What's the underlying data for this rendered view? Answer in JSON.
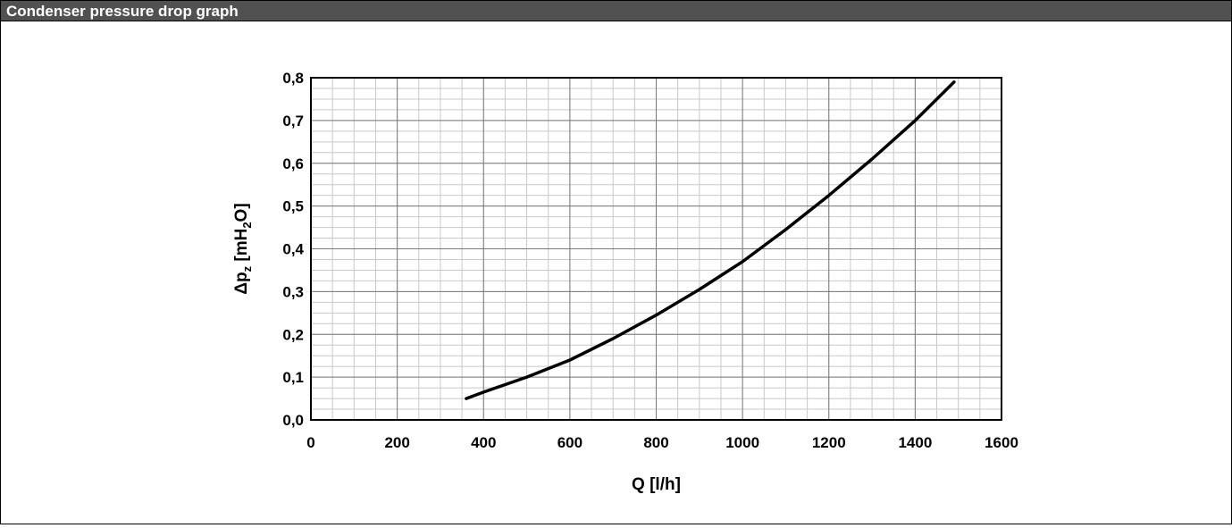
{
  "panel": {
    "title": "Condenser pressure drop graph"
  },
  "chart_data": {
    "type": "line",
    "title": "",
    "xlabel": "Q [l/h]",
    "ylabel": {
      "prefix": "Δp",
      "sub1": "z",
      "mid": " [mH",
      "sub2": "2",
      "suffix": "O]"
    },
    "xlim": [
      0,
      1600
    ],
    "ylim": [
      0,
      0.8
    ],
    "x_ticks": [
      0,
      200,
      400,
      600,
      800,
      1000,
      1200,
      1400,
      1600
    ],
    "x_tick_labels": [
      "0",
      "200",
      "400",
      "600",
      "800",
      "1000",
      "1200",
      "1400",
      "1600"
    ],
    "y_ticks": [
      0,
      0.1,
      0.2,
      0.3,
      0.4,
      0.5,
      0.6,
      0.7,
      0.8
    ],
    "y_tick_labels": [
      "0,0",
      "0,1",
      "0,2",
      "0,3",
      "0,4",
      "0,5",
      "0,6",
      "0,7",
      "0,8"
    ],
    "grid": true,
    "minor_grid": true,
    "line_color": "#000000",
    "series": [
      {
        "x": [
          360,
          400,
          500,
          600,
          700,
          800,
          900,
          1000,
          1100,
          1200,
          1300,
          1400,
          1490
        ],
        "y": [
          0.05,
          0.065,
          0.1,
          0.14,
          0.19,
          0.245,
          0.305,
          0.37,
          0.445,
          0.525,
          0.61,
          0.7,
          0.79
        ]
      }
    ]
  }
}
